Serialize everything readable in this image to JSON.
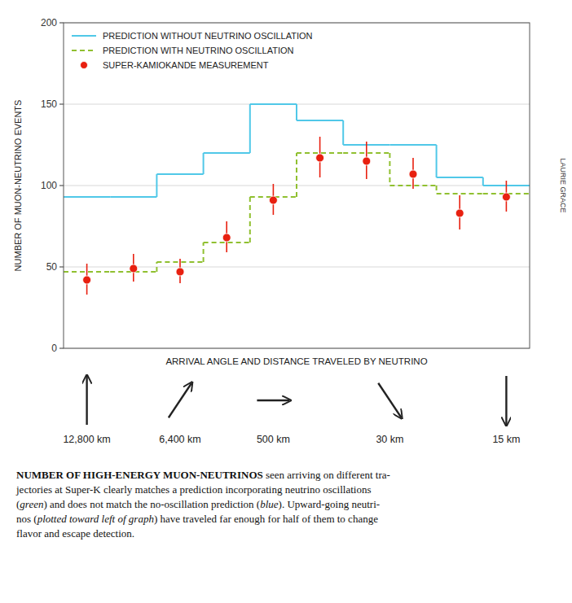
{
  "chart_data": {
    "type": "histogram",
    "xlabel": "ARRIVAL ANGLE AND DISTANCE TRAVELED BY NEUTRINO",
    "ylabel": "NUMBER OF MUON-NEUTRINO EVENTS",
    "bins": [
      0,
      1,
      2,
      3,
      4,
      5,
      6,
      7,
      8,
      9,
      10
    ],
    "series": [
      {
        "name": "PREDICTION WITHOUT NEUTRINO OSCILLATION",
        "type": "step",
        "color": "#50c8e8",
        "line_style": "solid",
        "values": [
          93,
          93,
          107,
          120,
          150,
          140,
          125,
          125,
          105,
          100
        ]
      },
      {
        "name": "PREDICTION WITH NEUTRINO OSCILLATION",
        "type": "step",
        "color": "#90c030",
        "line_style": "dashed",
        "values": [
          47,
          47,
          53,
          65,
          93,
          120,
          120,
          100,
          95,
          95
        ]
      },
      {
        "name": "SUPER-KAMIOKANDE MEASUREMENT",
        "type": "errorbar",
        "color": "#e82010",
        "marker": "circle",
        "x": [
          0.5,
          1.5,
          2.5,
          3.5,
          4.5,
          5.5,
          6.5,
          7.5,
          8.5,
          9.5
        ],
        "values": [
          42,
          49,
          47,
          68,
          91,
          117,
          115,
          107,
          83,
          93
        ],
        "error_low": [
          9,
          8,
          7,
          9,
          9,
          12,
          11,
          9,
          10,
          9
        ],
        "error_high": [
          10,
          9,
          8,
          10,
          10,
          13,
          12,
          10,
          11,
          10
        ]
      }
    ],
    "xlim": [
      0,
      10
    ],
    "ylim": [
      0,
      200
    ],
    "yticks": [
      0,
      50,
      100,
      150,
      200
    ],
    "tick_labels": "y",
    "grid": true,
    "legend": "upper left",
    "annotations": [
      {
        "text": "12,800 km",
        "x": 0.5,
        "angle": 90
      },
      {
        "text": "6,400 km",
        "x": 2.5,
        "angle": 45
      },
      {
        "text": "500 km",
        "x": 4.5,
        "angle": 0
      },
      {
        "text": "30 km",
        "x": 7.0,
        "angle": -45
      },
      {
        "text": "15 km",
        "x": 9.5,
        "angle": -90
      }
    ],
    "caption": [
      [
        {
          "text": "NUMBER OF HIGH-ENERGY MUON-NEUTRINOS",
          "style": "bold"
        },
        {
          "text": " seen arriving on different tra-",
          "style": "regular"
        }
      ],
      [
        {
          "text": "jectories at Super-K clearly matches a prediction incorporating neutrino oscillations",
          "style": "regular"
        }
      ],
      [
        {
          "text": "(",
          "style": "regular"
        },
        {
          "text": "green",
          "style": "italic"
        },
        {
          "text": ") and does not match the no-oscillation prediction (",
          "style": "regular"
        },
        {
          "text": "blue",
          "style": "italic"
        },
        {
          "text": "). Upward-going neutri-",
          "style": "regular"
        }
      ],
      [
        {
          "text": "nos (",
          "style": "regular"
        },
        {
          "text": "plotted toward left of graph",
          "style": "italic"
        },
        {
          "text": ") have traveled far enough for half of them to change",
          "style": "regular"
        }
      ],
      [
        {
          "text": "flavor and escape detection.",
          "style": "regular"
        }
      ]
    ],
    "credit": "LAURIE GRACE"
  }
}
